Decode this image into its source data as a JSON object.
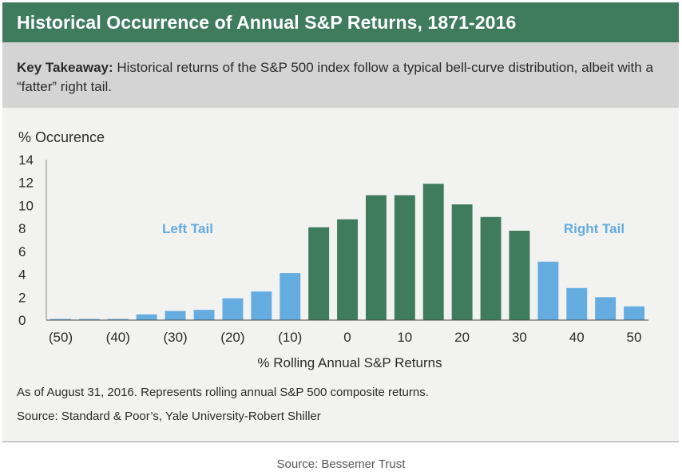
{
  "header": {
    "title": "Historical Occurrence of Annual S&P Returns, 1871-2016"
  },
  "takeaway": {
    "label": "Key Takeaway:",
    "text": " Historical returns of the S&P 500 index follow a typical bell-curve distribution, albeit with a “fatter” right tail."
  },
  "chart_data": {
    "type": "bar",
    "ylabel": "% Occurence",
    "xlabel": "% Rolling Annual S&P Returns",
    "ylim": [
      0,
      14
    ],
    "yticks": [
      0,
      2,
      4,
      6,
      8,
      10,
      12,
      14
    ],
    "xtick_labels": [
      "(50)",
      "(40)",
      "(30)",
      "(20)",
      "(10)",
      "0",
      "10",
      "20",
      "30",
      "40",
      "50"
    ],
    "categories": [
      "-50",
      "-45",
      "-40",
      "-35",
      "-30",
      "-25",
      "-20",
      "-15",
      "-10",
      "-5",
      "0",
      "5",
      "10",
      "15",
      "20",
      "25",
      "30",
      "35",
      "40",
      "45",
      "50"
    ],
    "values": [
      0.1,
      0.1,
      0.1,
      0.5,
      0.8,
      0.9,
      1.9,
      2.5,
      4.1,
      8.1,
      8.8,
      10.9,
      10.9,
      11.9,
      10.1,
      9.0,
      7.8,
      5.1,
      2.8,
      2.0,
      1.2
    ],
    "series_colors": {
      "tail": "#65ace0",
      "core": "#3f7c5e"
    },
    "annotations": [
      {
        "text": "Left Tail",
        "color": "#65ace0"
      },
      {
        "text": "Right Tail",
        "color": "#65ace0"
      }
    ],
    "grid": false
  },
  "notes": {
    "asof": "As of August 31, 2016. Represents rolling annual S&P 500 composite returns.",
    "source_line": "Source: Standard & Poor’s, Yale University-Robert Shiller"
  },
  "footer": {
    "source": "Source: Bessemer Trust"
  }
}
